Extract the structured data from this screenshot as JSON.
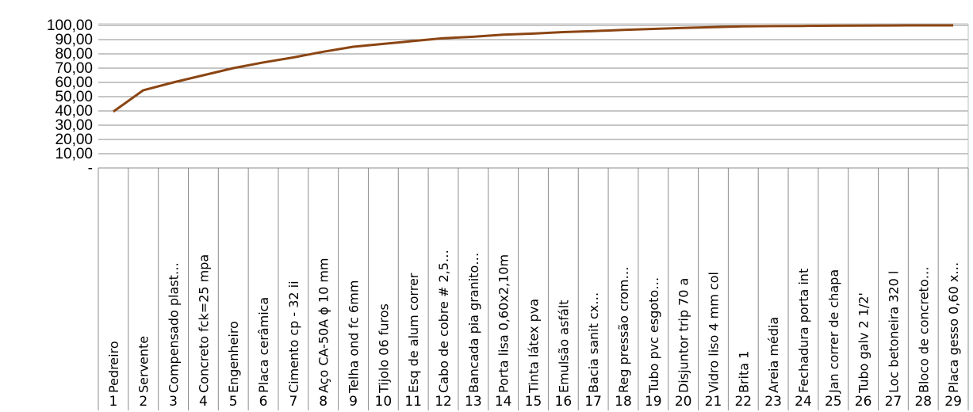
{
  "chart_data": {
    "type": "line",
    "series_color": "#8B4513",
    "grid": true,
    "ylim": [
      0,
      100
    ],
    "y_ticks": [
      "-",
      "10,00",
      "20,00",
      "30,00",
      "40,00",
      "50,00",
      "60,00",
      "70,00",
      "80,00",
      "90,00",
      "100,00"
    ],
    "x_numbers": [
      "1",
      "2",
      "3",
      "4",
      "5",
      "6",
      "7",
      "8",
      "9",
      "10",
      "11",
      "12",
      "13",
      "14",
      "15",
      "16",
      "17",
      "18",
      "19",
      "20",
      "21",
      "22",
      "23",
      "24",
      "25",
      "26",
      "27",
      "28",
      "29"
    ],
    "categories": [
      "Pedreiro",
      "Servente",
      "Compensado plast…",
      "Concreto fck=25 mpa",
      "Engenheiro",
      "Placa cerâmica",
      "Cimento cp - 32 ii",
      "Aço CA-50A ϕ 10 mm",
      "Telha ond fc 6mm",
      "Tijolo 06 furos",
      "Esq de alum correr",
      "Cabo de cobre # 2,5…",
      "Bancada pia granito…",
      "Porta lisa 0,60x2,10m",
      "Tinta látex pva",
      "Emulsão asfált",
      "Bacia sanit cx…",
      "Reg pressão crom…",
      "Tubo pvc esgoto…",
      "Disjuntor trip 70 a",
      "Vidro liso 4 mm col",
      "Brita 1",
      "Areia média",
      "Fechadura porta int",
      "Jan correr de chapa",
      "Tubo galv 2 1/2'",
      "Loc betoneira 320 l",
      "Bloco de concreto…",
      "Placa gesso 0,60 x…"
    ],
    "series": [
      {
        "values": [
          39.5,
          54.5,
          60.0,
          65.0,
          70.0,
          74.0,
          77.5,
          81.5,
          85.0,
          87.0,
          89.0,
          91.0,
          92.0,
          93.5,
          94.2,
          95.3,
          96.0,
          96.8,
          97.5,
          98.2,
          98.8,
          99.3,
          99.5,
          99.6,
          99.8,
          99.9,
          99.95,
          100.0,
          100.0
        ]
      }
    ]
  }
}
